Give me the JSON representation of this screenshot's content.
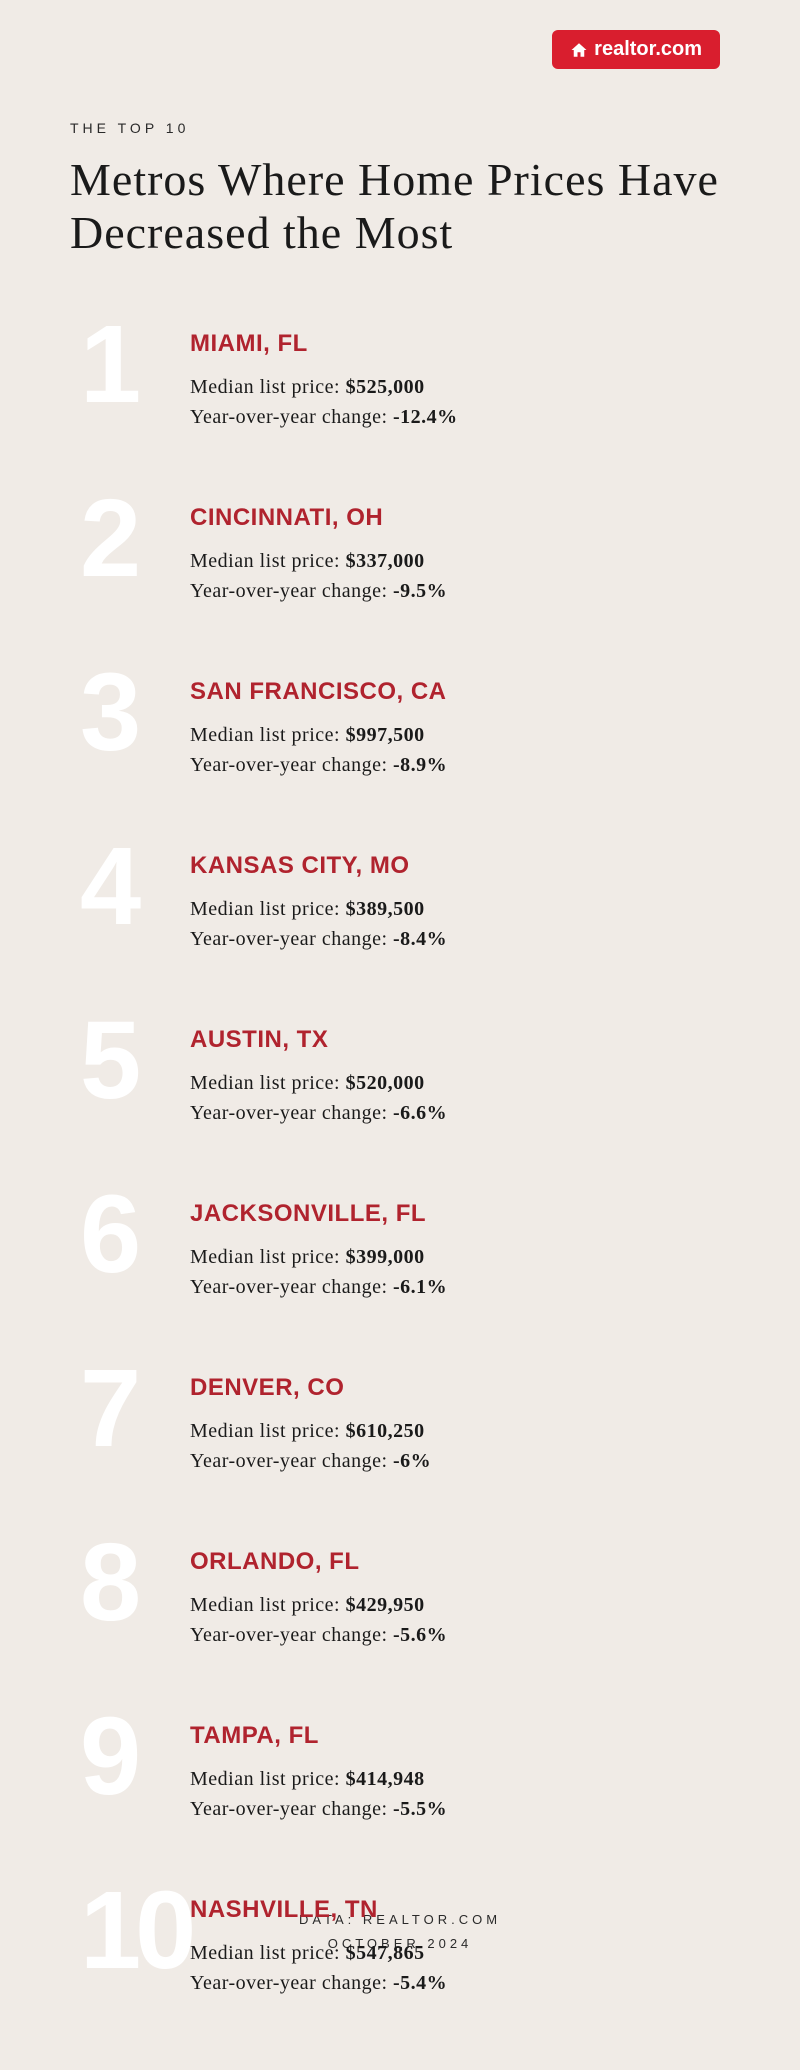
{
  "logo": {
    "text": "realtor.com",
    "background_color": "#d91e2e",
    "text_color": "#ffffff"
  },
  "header": {
    "eyebrow": "THE TOP 10",
    "title": "Metros Where Home Prices Have Decreased the Most"
  },
  "labels": {
    "median_list_price": "Median list price: ",
    "yoy_change": "Year-over-year change: "
  },
  "colors": {
    "background": "#f0ebe6",
    "accent_red": "#b0232e",
    "rank_number": "#ffffff",
    "body_text": "#1a1a1a"
  },
  "typography": {
    "title_fontsize": 46,
    "city_fontsize": 24,
    "stat_fontsize": 20,
    "rank_fontsize": 110,
    "eyebrow_fontsize": 14,
    "footer_fontsize": 13
  },
  "metros": [
    {
      "rank": "1",
      "city": "MIAMI, FL",
      "price": "$525,000",
      "change": "-12.4%"
    },
    {
      "rank": "2",
      "city": "CINCINNATI, OH",
      "price": "$337,000",
      "change": "-9.5%"
    },
    {
      "rank": "3",
      "city": "SAN FRANCISCO, CA",
      "price": "$997,500",
      "change": "-8.9%"
    },
    {
      "rank": "4",
      "city": "KANSAS CITY, MO",
      "price": "$389,500",
      "change": "-8.4%"
    },
    {
      "rank": "5",
      "city": "AUSTIN, TX",
      "price": "$520,000",
      "change": "-6.6%"
    },
    {
      "rank": "6",
      "city": "JACKSONVILLE, FL",
      "price": "$399,000",
      "change": "-6.1%"
    },
    {
      "rank": "7",
      "city": "DENVER, CO",
      "price": "$610,250",
      "change": "-6%"
    },
    {
      "rank": "8",
      "city": "ORLANDO, FL",
      "price": "$429,950",
      "change": "-5.6%"
    },
    {
      "rank": "9",
      "city": "TAMPA, FL",
      "price": "$414,948",
      "change": "-5.5%"
    },
    {
      "rank": "10",
      "city": "NASHVILLE, TN",
      "price": "$547,865",
      "change": "-5.4%"
    }
  ],
  "footer": {
    "line1": "DATA: REALTOR.COM",
    "line2": "OCTOBER 2024"
  }
}
